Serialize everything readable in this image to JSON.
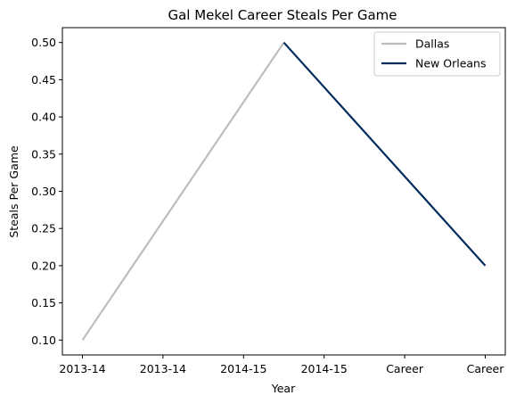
{
  "chart_data": {
    "type": "line",
    "title": "Gal Mekel Career Steals Per Game",
    "xlabel": "Year",
    "ylabel": "Steals Per Game",
    "categories": [
      "2013-14",
      "2013-14",
      "2014-15",
      "2014-15",
      "Career",
      "Career"
    ],
    "ylim": [
      0.08,
      0.52
    ],
    "yticks": [
      0.1,
      0.15,
      0.2,
      0.25,
      0.3,
      0.35,
      0.4,
      0.45,
      0.5
    ],
    "grid": false,
    "legend": "top-right",
    "series": [
      {
        "name": "Dallas",
        "color": "#bdbdbd",
        "x": [
          0,
          2.5
        ],
        "y": [
          0.1,
          0.5
        ]
      },
      {
        "name": "New Orleans",
        "color": "#002b5c",
        "x": [
          2.5,
          5
        ],
        "y": [
          0.5,
          0.2
        ]
      }
    ]
  }
}
